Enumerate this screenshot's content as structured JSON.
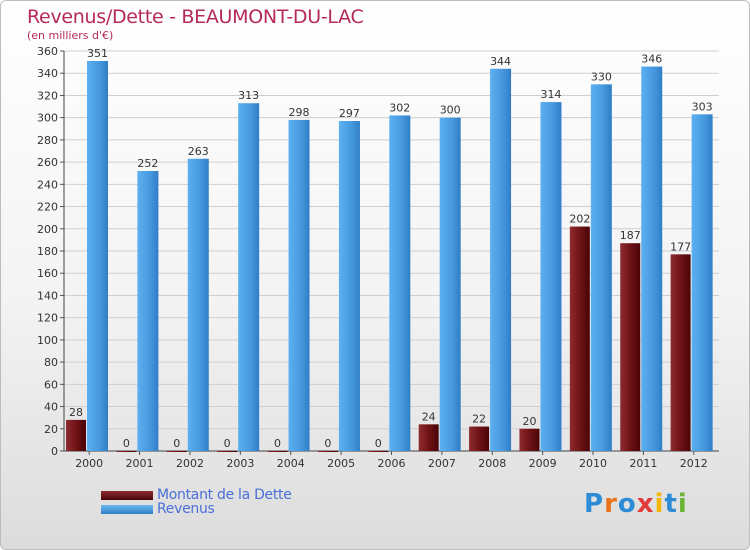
{
  "header": {
    "title": "Revenus/Dette - BEAUMONT-DU-LAC",
    "subtitle": "(en milliers d'€)"
  },
  "chart_data": {
    "type": "bar",
    "title": "Revenus/Dette - BEAUMONT-DU-LAC",
    "ylabel": "(en milliers d'€)",
    "xlabel": "",
    "ylim": [
      0,
      360
    ],
    "yticks": [
      0,
      20,
      40,
      60,
      80,
      100,
      120,
      140,
      160,
      180,
      200,
      220,
      240,
      260,
      280,
      300,
      320,
      340,
      360
    ],
    "grid": true,
    "categories": [
      "2000",
      "2001",
      "2002",
      "2003",
      "2004",
      "2005",
      "2006",
      "2007",
      "2008",
      "2009",
      "2010",
      "2011",
      "2012"
    ],
    "series": [
      {
        "name": "Montant de la Dette",
        "color": "#6b0f14",
        "values": [
          28,
          0,
          0,
          0,
          0,
          0,
          0,
          24,
          22,
          20,
          202,
          187,
          177
        ]
      },
      {
        "name": "Revenus",
        "color": "#4ea1e6",
        "values": [
          351,
          252,
          263,
          313,
          298,
          297,
          302,
          300,
          344,
          314,
          330,
          346,
          303
        ]
      }
    ],
    "legend_position": "bottom-left"
  },
  "legend": {
    "items": [
      {
        "label": "Montant de la Dette",
        "color": "#6b0f14"
      },
      {
        "label": "Revenus",
        "color": "#4ea1e6"
      }
    ]
  },
  "logo": {
    "text": "Proxiti"
  }
}
